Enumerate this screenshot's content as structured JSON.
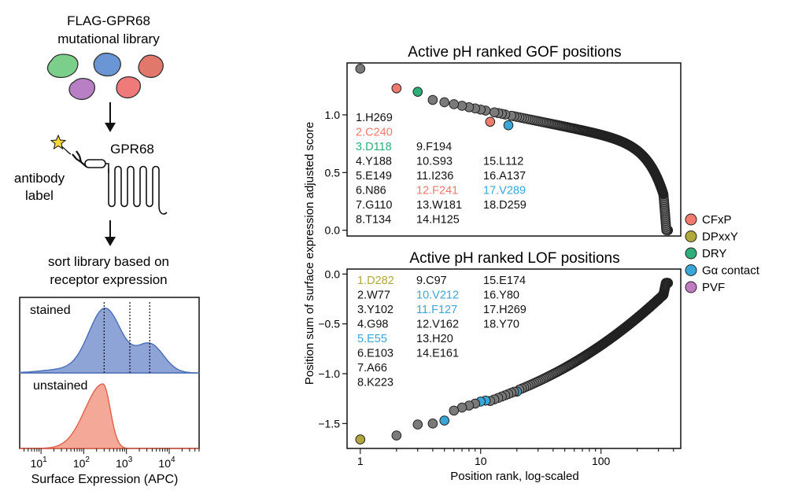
{
  "workflow": {
    "library_title_line1": "FLAG-GPR68",
    "library_title_line2": "mutational library",
    "receptor_label": "GPR68",
    "antibody_label_line1": "antibody",
    "antibody_label_line2": "label",
    "sort_label_line1": "sort library based on",
    "sort_label_line2": "receptor expression",
    "blob_colors": [
      "#7bcf8a",
      "#6b96d6",
      "#e2776b",
      "#b87fc4",
      "#f07a7a"
    ]
  },
  "histogram": {
    "stained_label": "stained",
    "unstained_label": "unstained",
    "xlabel": "Surface Expression (APC)",
    "x_ticks": [
      {
        "base": "10",
        "exp": "1",
        "value": 10
      },
      {
        "base": "10",
        "exp": "2",
        "value": 100
      },
      {
        "base": "10",
        "exp": "3",
        "value": 1000
      },
      {
        "base": "10",
        "exp": "4",
        "value": 10000
      }
    ],
    "gate_values": [
      300,
      1200,
      3500
    ],
    "stained_color": "#8ea3d6",
    "stained_line": "#4a6fb8",
    "unstained_color": "#f4a898",
    "unstained_line": "#e0604c"
  },
  "shared_ylabel": "Position sum of surface expression adjusted score",
  "shared_xlabel": "Position rank, log-scaled",
  "legend": [
    {
      "label": "CFxP",
      "color": "#f07a6e"
    },
    {
      "label": "DPxxY",
      "color": "#b0a83c"
    },
    {
      "label": "DRY",
      "color": "#2fae78"
    },
    {
      "label": "Gα contact",
      "color": "#3aa6d8"
    },
    {
      "label": "PVF",
      "color": "#c07cc0"
    }
  ],
  "chart_data": [
    {
      "type": "scatter",
      "title": "Active pH ranked GOF positions",
      "xlabel": "Position rank, log-scaled",
      "ylabel": "Position sum of surface expression adjusted score",
      "xscale": "log",
      "xlim": [
        0.85,
        420
      ],
      "ylim": [
        -0.05,
        1.45
      ],
      "yticks": [
        0.0,
        0.5,
        1.0
      ],
      "ytick_labels": [
        "0.0",
        "0.5",
        "1.0"
      ],
      "xticks": [
        1,
        10,
        100
      ],
      "xtick_labels": [
        "1",
        "10",
        "100"
      ],
      "n_points": 360,
      "highlighted_points": [
        {
          "x": 1,
          "y": 1.4,
          "group": "none"
        },
        {
          "x": 2,
          "y": 1.23,
          "group": "CFxP"
        },
        {
          "x": 3,
          "y": 1.2,
          "group": "DRY"
        },
        {
          "x": 12,
          "y": 0.94,
          "group": "CFxP"
        },
        {
          "x": 17,
          "y": 0.91,
          "group": "Gα contact"
        }
      ],
      "ranked_labels": [
        {
          "text": "1.H269",
          "color": "#111111"
        },
        {
          "text": "2.C240",
          "color": "#f07a6e"
        },
        {
          "text": "3.D118",
          "color": "#2fae78"
        },
        {
          "text": "4.Y188",
          "color": "#111111"
        },
        {
          "text": "5.E149",
          "color": "#111111"
        },
        {
          "text": "6.N86",
          "color": "#111111"
        },
        {
          "text": "7.G110",
          "color": "#111111"
        },
        {
          "text": "8.T134",
          "color": "#111111"
        },
        {
          "text": "9.F194",
          "color": "#111111"
        },
        {
          "text": "10.S93",
          "color": "#111111"
        },
        {
          "text": "11.I236",
          "color": "#111111"
        },
        {
          "text": "12.F241",
          "color": "#f07a6e"
        },
        {
          "text": "13.W181",
          "color": "#111111"
        },
        {
          "text": "14.H125",
          "color": "#111111"
        },
        {
          "text": "15.L112",
          "color": "#111111"
        },
        {
          "text": "16.A137",
          "color": "#111111"
        },
        {
          "text": "17.V289",
          "color": "#3aa6d8"
        },
        {
          "text": "18.D259",
          "color": "#111111"
        }
      ]
    },
    {
      "type": "scatter",
      "title": "Active pH ranked LOF positions",
      "xlabel": "Position rank, log-scaled",
      "ylabel": "Position sum of surface expression adjusted score",
      "xscale": "log",
      "xlim": [
        0.85,
        420
      ],
      "ylim": [
        -1.75,
        0.05
      ],
      "yticks": [
        -1.5,
        -1.0,
        -0.5,
        0.0
      ],
      "ytick_labels": [
        "−1.5",
        "−1.0",
        "−0.5",
        "0.0"
      ],
      "xticks": [
        1,
        10,
        100
      ],
      "xtick_labels": [
        "1",
        "10",
        "100"
      ],
      "n_points": 360,
      "highlighted_points": [
        {
          "x": 1,
          "y": -1.66,
          "group": "DPxxY"
        },
        {
          "x": 2,
          "y": -1.62,
          "group": "none"
        },
        {
          "x": 3,
          "y": -1.51,
          "group": "none"
        },
        {
          "x": 4,
          "y": -1.5,
          "group": "none"
        },
        {
          "x": 5,
          "y": -1.47,
          "group": "Gα contact"
        },
        {
          "x": 10,
          "y": -1.28,
          "group": "Gα contact"
        },
        {
          "x": 11,
          "y": -1.27,
          "group": "Gα contact"
        },
        {
          "x": 20,
          "y": -1.18,
          "group": "Gα contact"
        }
      ],
      "ranked_labels": [
        {
          "text": "1.D282",
          "color": "#b0a83c"
        },
        {
          "text": "2.W77",
          "color": "#111111"
        },
        {
          "text": "3.Y102",
          "color": "#111111"
        },
        {
          "text": "4.G98",
          "color": "#111111"
        },
        {
          "text": "5.E55",
          "color": "#3aa6d8"
        },
        {
          "text": "6.E103",
          "color": "#111111"
        },
        {
          "text": "7.A66",
          "color": "#111111"
        },
        {
          "text": "8.K223",
          "color": "#111111"
        },
        {
          "text": "9.C97",
          "color": "#111111"
        },
        {
          "text": "10.V212",
          "color": "#3aa6d8"
        },
        {
          "text": "11.F127",
          "color": "#3aa6d8"
        },
        {
          "text": "12.V162",
          "color": "#111111"
        },
        {
          "text": "13.H20",
          "color": "#111111"
        },
        {
          "text": "14.E161",
          "color": "#111111"
        },
        {
          "text": "15.E174",
          "color": "#111111"
        },
        {
          "text": "16.Y80",
          "color": "#111111"
        },
        {
          "text": "17.H269",
          "color": "#111111"
        },
        {
          "text": "18.Y70",
          "color": "#111111"
        }
      ]
    }
  ]
}
